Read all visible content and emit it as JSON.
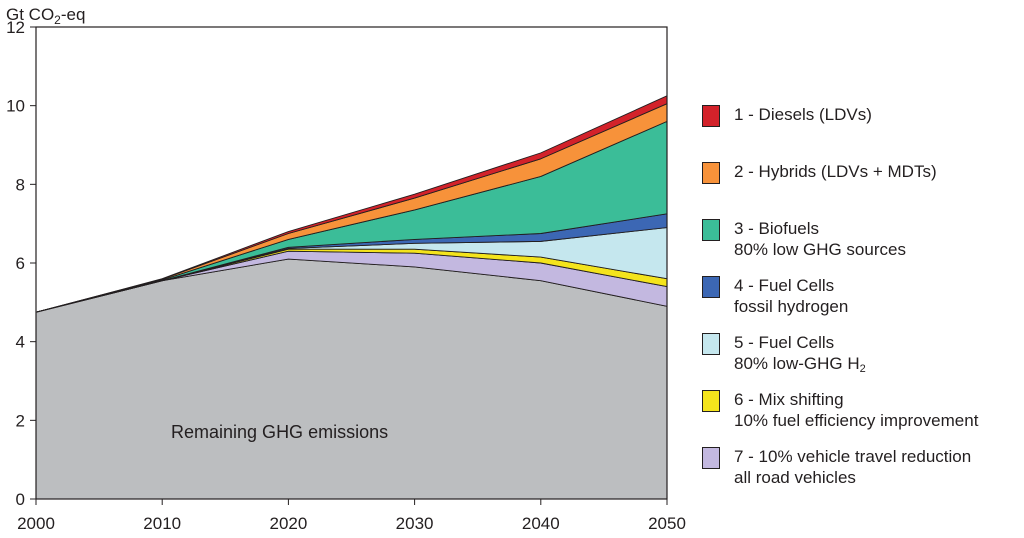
{
  "chart_data": {
    "type": "area",
    "stacked": true,
    "ylabel": "Gt CO₂-eq",
    "ylim": [
      0,
      12
    ],
    "yticks": [
      0,
      2,
      4,
      6,
      8,
      10,
      12
    ],
    "x": [
      2000,
      2010,
      2020,
      2030,
      2040,
      2050
    ],
    "xlim": [
      2000,
      2050
    ],
    "base_label": "Remaining GHG emissions",
    "base": {
      "name": "Remaining GHG emissions",
      "color": "#bcbec0",
      "values": [
        4.75,
        5.55,
        6.1,
        5.9,
        5.55,
        4.9
      ]
    },
    "series": [
      {
        "id": 7,
        "name": "7 - 10% vehicle travel reduction",
        "sub": "all road vehicles",
        "color": "#c3b8e0",
        "values": [
          0,
          0,
          0.2,
          0.35,
          0.45,
          0.5
        ]
      },
      {
        "id": 6,
        "name": "6 - Mix shifting",
        "sub": "10% fuel efficiency improvement",
        "color": "#f4e41c",
        "values": [
          0,
          0,
          0.05,
          0.1,
          0.15,
          0.2
        ]
      },
      {
        "id": 5,
        "name": "5 - Fuel Cells",
        "sub": "80% low-GHG H₂",
        "color": "#c5e7ee",
        "values": [
          0,
          0,
          0.02,
          0.15,
          0.4,
          1.3
        ]
      },
      {
        "id": 4,
        "name": "4 - Fuel Cells",
        "sub": "fossil hydrogen",
        "color": "#3c67b4",
        "values": [
          0,
          0,
          0.03,
          0.1,
          0.2,
          0.35
        ]
      },
      {
        "id": 3,
        "name": "3 - Biofuels",
        "sub": "80% low GHG sources",
        "color": "#3bbd98",
        "values": [
          0,
          0.02,
          0.2,
          0.75,
          1.45,
          2.35
        ]
      },
      {
        "id": 2,
        "name": "2 - Hybrids (LDVs + MDTs)",
        "sub": "",
        "color": "#f7923a",
        "values": [
          0,
          0.02,
          0.15,
          0.3,
          0.45,
          0.45
        ]
      },
      {
        "id": 1,
        "name": "1 - Diesels (LDVs)",
        "sub": "",
        "color": "#d3222a",
        "values": [
          0,
          0.01,
          0.05,
          0.1,
          0.15,
          0.2
        ]
      }
    ],
    "legend_position": "right",
    "grid": false
  }
}
